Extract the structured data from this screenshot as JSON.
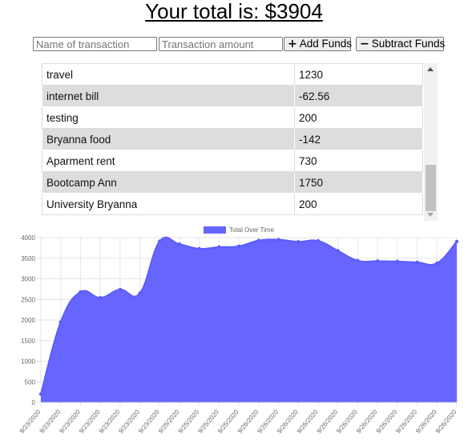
{
  "header": {
    "total_text": "Your total is: $3904"
  },
  "form": {
    "name_placeholder": "Name of transaction",
    "amount_placeholder": "Transaction amount",
    "add_label": "Add Funds",
    "add_icon": "plus-icon",
    "subtract_label": "Subtract Funds",
    "subtract_icon": "minus-icon"
  },
  "transactions": {
    "rows": [
      {
        "name": "travel",
        "amount": "1230"
      },
      {
        "name": "internet bill",
        "amount": "-62.56"
      },
      {
        "name": "testing",
        "amount": "200"
      },
      {
        "name": "Bryanna food",
        "amount": "-142"
      },
      {
        "name": "Aparment rent",
        "amount": "730"
      },
      {
        "name": "Bootcamp Ann",
        "amount": "1750"
      },
      {
        "name": "University Bryanna",
        "amount": "200"
      }
    ]
  },
  "colors": {
    "fill": "#6666ff",
    "line": "#5c5cff",
    "grid": "#e6e6e6",
    "alt_row": "#dddddd"
  },
  "chart_data": {
    "type": "area",
    "title": "",
    "xlabel": "",
    "ylabel": "",
    "legend": {
      "position": "top",
      "entries": [
        "Total Over Time"
      ]
    },
    "grid": true,
    "ylim": [
      0,
      4000
    ],
    "yticks": [
      "0",
      "500",
      "1000",
      "1500",
      "2000",
      "2500",
      "3000",
      "3500",
      "4000"
    ],
    "x": [
      "9/23/2020",
      "9/23/2020",
      "9/23/2020",
      "9/23/2020",
      "9/23/2020",
      "9/23/2020",
      "9/23/2020",
      "9/25/2020",
      "9/25/2020",
      "9/25/2020",
      "9/25/2020",
      "9/26/2020",
      "9/26/2020",
      "9/26/2020",
      "9/26/2020",
      "9/26/2020",
      "9/26/2020",
      "9/26/2020",
      "9/26/2020",
      "9/26/2020",
      "9/26/2020",
      "9/26/2020"
    ],
    "series": [
      {
        "name": "Total Over Time",
        "values": [
          200,
          1950,
          2680,
          2540,
          2740,
          2650,
          3910,
          3840,
          3730,
          3770,
          3790,
          3930,
          3950,
          3900,
          3920,
          3680,
          3440,
          3430,
          3420,
          3400,
          3380,
          3904
        ]
      }
    ]
  }
}
